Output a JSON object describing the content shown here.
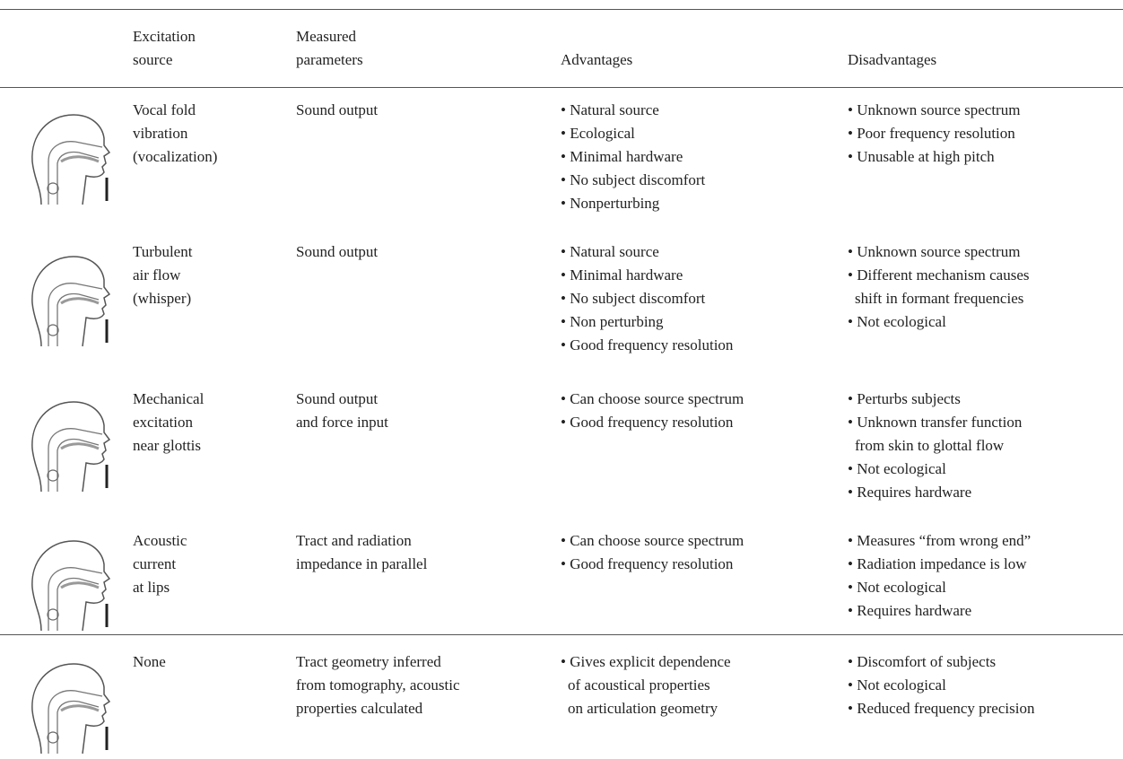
{
  "table": {
    "headers": [
      [
        "Excitation",
        "source"
      ],
      [
        "Measured",
        "parameters"
      ],
      [
        "Advantages"
      ],
      [
        "Disadvantages"
      ]
    ],
    "rows": [
      {
        "source": [
          "Vocal fold",
          "vibration",
          "(vocalization)"
        ],
        "measured": [
          "Sound output"
        ],
        "advantages": [
          [
            "• Natural source"
          ],
          [
            "• Ecological"
          ],
          [
            "• Minimal hardware"
          ],
          [
            "• No subject discomfort"
          ],
          [
            "• Nonperturbing"
          ]
        ],
        "disadvantages": [
          [
            "• Unknown source spectrum"
          ],
          [
            "• Poor frequency resolution"
          ],
          [
            "• Unusable at high pitch"
          ]
        ]
      },
      {
        "source": [
          "Turbulent",
          "air flow",
          "(whisper)"
        ],
        "measured": [
          "Sound output"
        ],
        "advantages": [
          [
            "• Natural source"
          ],
          [
            "• Minimal hardware"
          ],
          [
            "• No subject discomfort"
          ],
          [
            "• Non perturbing"
          ],
          [
            "• Good frequency resolution"
          ]
        ],
        "disadvantages": [
          [
            "• Unknown source spectrum"
          ],
          [
            "• Different mechanism causes",
            "shift in formant frequencies"
          ],
          [
            "• Not ecological"
          ]
        ]
      },
      {
        "source": [
          "Mechanical",
          "excitation",
          "near glottis"
        ],
        "measured": [
          "Sound output",
          "and force input"
        ],
        "advantages": [
          [
            "• Can choose source spectrum"
          ],
          [
            "• Good frequency resolution"
          ]
        ],
        "disadvantages": [
          [
            "• Perturbs subjects"
          ],
          [
            "• Unknown transfer function",
            "from skin to glottal flow"
          ],
          [
            "• Not ecological"
          ],
          [
            "• Requires hardware"
          ]
        ]
      },
      {
        "source": [
          "Acoustic",
          "current",
          "at lips"
        ],
        "measured": [
          "Tract and radiation",
          "impedance in parallel"
        ],
        "advantages": [
          [
            "• Can choose source spectrum"
          ],
          [
            "• Good frequency resolution"
          ]
        ],
        "disadvantages": [
          [
            "• Measures “from wrong end”"
          ],
          [
            "• Radiation impedance is low"
          ],
          [
            "• Not ecological"
          ],
          [
            "• Requires hardware"
          ]
        ]
      },
      {
        "source": [
          "None"
        ],
        "measured": [
          "Tract geometry inferred",
          "from tomography, acoustic",
          "properties calculated"
        ],
        "advantages": [
          [
            "• Gives explicit dependence",
            "of acoustical properties",
            "on articulation geometry"
          ]
        ],
        "disadvantages": [
          [
            "• Discomfort of subjects"
          ],
          [
            "• Not ecological"
          ],
          [
            "• Reduced frequency precision"
          ]
        ]
      }
    ]
  }
}
